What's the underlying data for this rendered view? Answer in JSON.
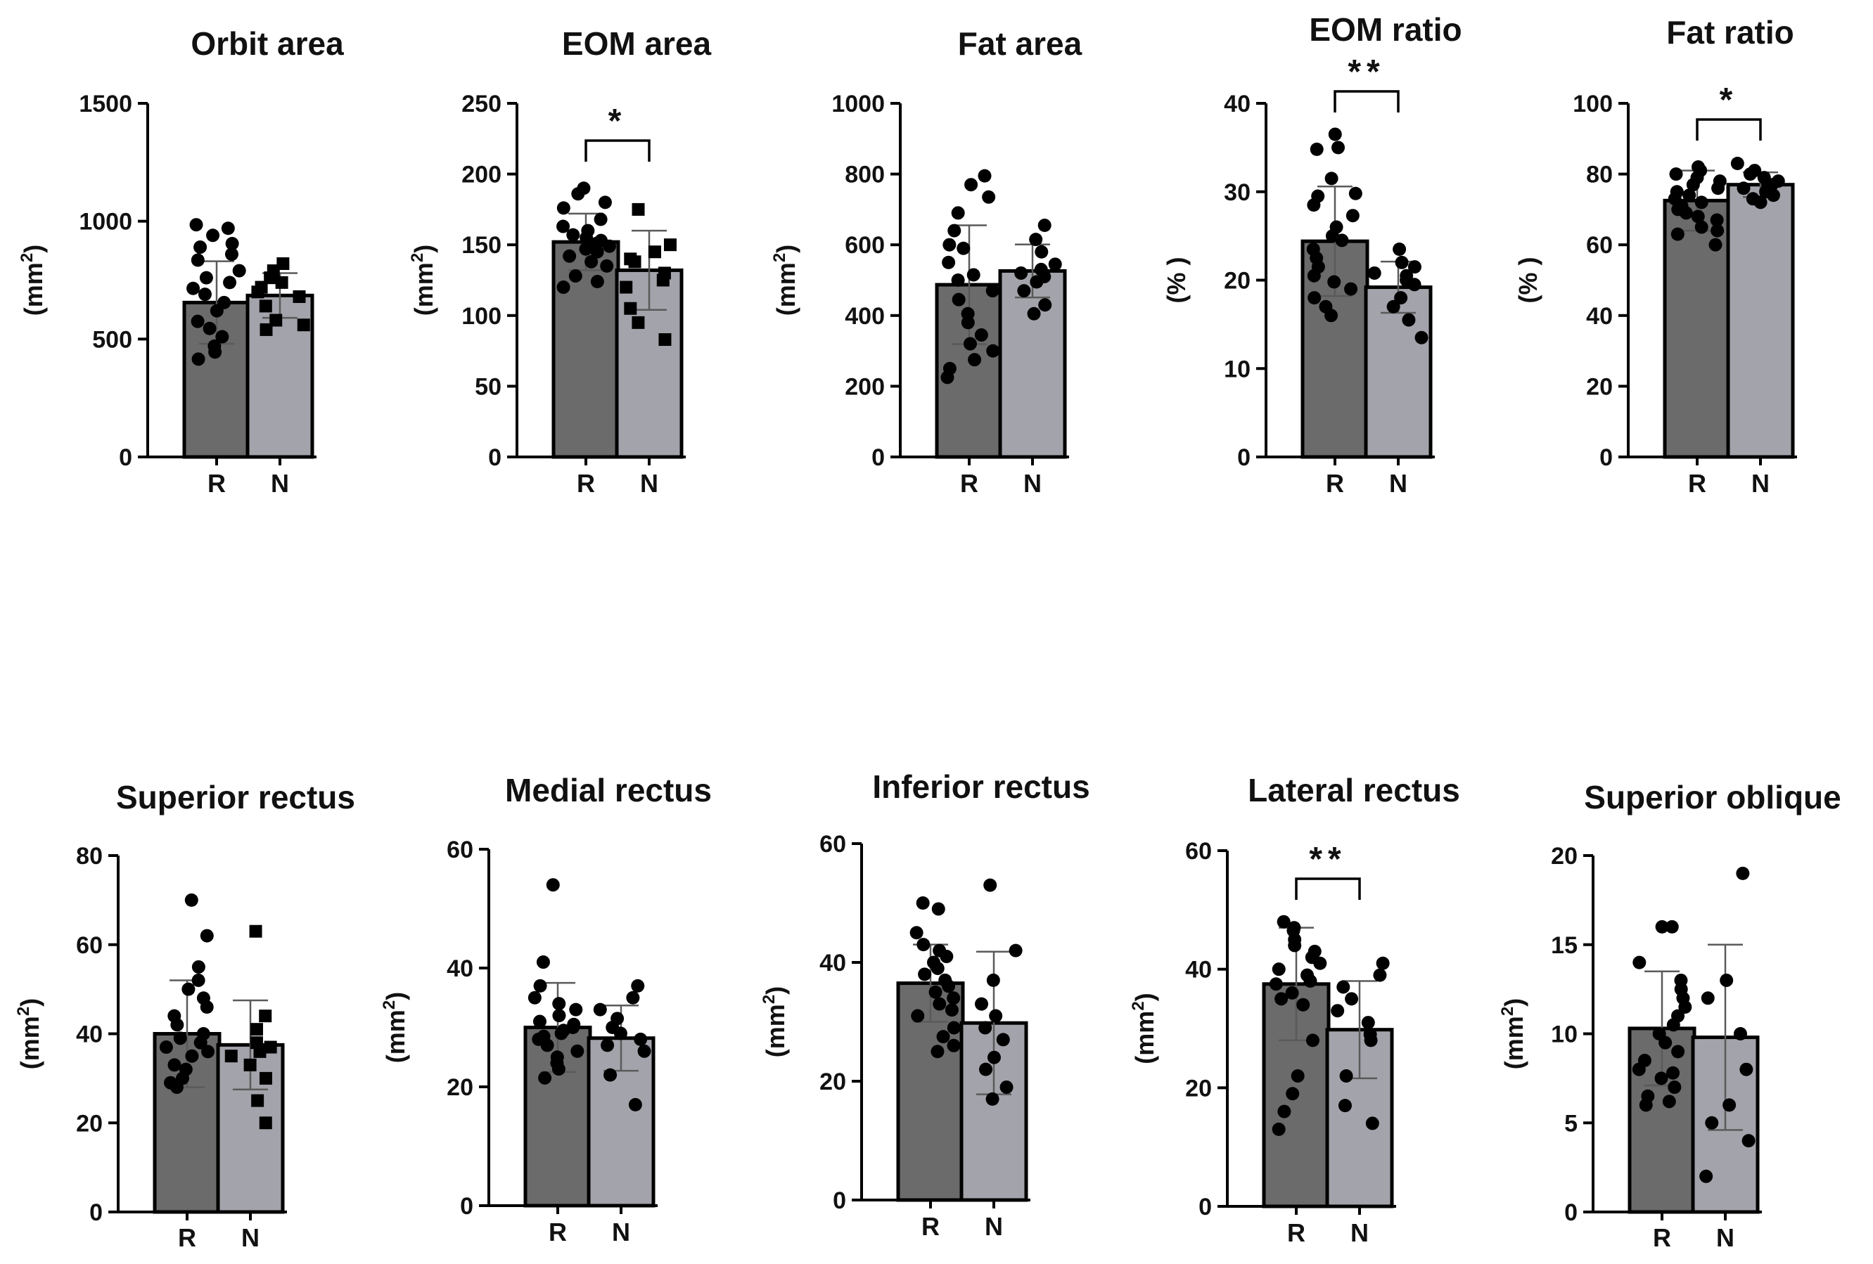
{
  "figure": {
    "colors": {
      "bar_R": "#6b6b6b",
      "bar_N": "#a3a3ab",
      "ink": "#000000",
      "errorbar": "#5a5a5a"
    },
    "marker_R": "circle",
    "marker_N_default": "circle"
  },
  "chart_data": [
    {
      "type": "bar",
      "title": "Orbit area",
      "ylabel": "(mm²)",
      "ylabel_base": "(mm",
      "ylabel_sup": "2",
      "ylabel_close": ")",
      "ylim": [
        0,
        1500
      ],
      "yticks": [
        0,
        500,
        1000,
        1500
      ],
      "categories": [
        "R",
        "N"
      ],
      "means": [
        655,
        685
      ],
      "sd": [
        175,
        95
      ],
      "markers": [
        "circle",
        "square"
      ],
      "points": [
        [
          970,
          985,
          940,
          905,
          890,
          860,
          835,
          790,
          760,
          740,
          715,
          690,
          655,
          620,
          575,
          545,
          510,
          470,
          445,
          415
        ],
        [
          820,
          790,
          760,
          740,
          720,
          700,
          680,
          640,
          580,
          560,
          540
        ]
      ],
      "significance": null
    },
    {
      "type": "bar",
      "title": "EOM area",
      "ylabel": "(mm²)",
      "ylabel_base": "(mm",
      "ylabel_sup": "2",
      "ylabel_close": ")",
      "ylim": [
        0,
        250
      ],
      "yticks": [
        0,
        50,
        100,
        150,
        200,
        250
      ],
      "categories": [
        "R",
        "N"
      ],
      "means": [
        152,
        132
      ],
      "sd": [
        20,
        28
      ],
      "markers": [
        "circle",
        "square"
      ],
      "points": [
        [
          190,
          186,
          180,
          176,
          168,
          163,
          160,
          157,
          155,
          153,
          151,
          149,
          147,
          145,
          142,
          138,
          135,
          128,
          124,
          120
        ],
        [
          175,
          150,
          145,
          140,
          138,
          130,
          125,
          120,
          105,
          95,
          83
        ]
      ],
      "significance": {
        "label": "*"
      }
    },
    {
      "type": "bar",
      "title": "Fat area",
      "ylabel": "(mm²)",
      "ylabel_base": "(mm",
      "ylabel_sup": "2",
      "ylabel_close": ")",
      "ylim": [
        0,
        1000
      ],
      "yticks": [
        0,
        200,
        400,
        600,
        800,
        1000
      ],
      "categories": [
        "R",
        "N"
      ],
      "means": [
        487,
        526
      ],
      "sd": [
        168,
        75
      ],
      "markers": [
        "circle",
        "circle"
      ],
      "points": [
        [
          795,
          770,
          735,
          690,
          640,
          600,
          590,
          550,
          515,
          500,
          470,
          445,
          405,
          380,
          345,
          320,
          300,
          275,
          250,
          225
        ],
        [
          655,
          615,
          580,
          545,
          530,
          520,
          510,
          495,
          470,
          430,
          405
        ]
      ],
      "significance": null
    },
    {
      "type": "bar",
      "title": "EOM ratio",
      "ylabel": "(% )",
      "ylabel_base": "(% )",
      "ylabel_sup": "",
      "ylabel_close": "",
      "ylim": [
        0,
        40
      ],
      "yticks": [
        0,
        10,
        20,
        30,
        40
      ],
      "categories": [
        "R",
        "N"
      ],
      "means": [
        24.4,
        19.2
      ],
      "sd": [
        6.2,
        2.9
      ],
      "markers": [
        "circle",
        "circle"
      ],
      "points": [
        [
          36.5,
          35.0,
          34.8,
          31.5,
          29.8,
          29.5,
          28.5,
          27.3,
          26.0,
          25.0,
          24.5,
          23.5,
          22.5,
          21.5,
          20.5,
          19.8,
          19.0,
          18.0,
          17.0,
          16.0
        ],
        [
          23.5,
          22.0,
          21.5,
          20.8,
          20.5,
          20.0,
          19.5,
          18.0,
          17.0,
          15.5,
          13.5
        ]
      ],
      "significance": {
        "label": "**"
      }
    },
    {
      "type": "bar",
      "title": "Fat ratio",
      "ylabel": "(% )",
      "ylabel_base": "(% )",
      "ylabel_sup": "",
      "ylabel_close": "",
      "ylim": [
        0,
        100
      ],
      "yticks": [
        0,
        20,
        40,
        60,
        80,
        100
      ],
      "categories": [
        "R",
        "N"
      ],
      "means": [
        72.5,
        77
      ],
      "sd": [
        8.5,
        3.5
      ],
      "markers": [
        "circle",
        "circle"
      ],
      "points": [
        [
          82,
          81,
          80,
          79,
          78,
          77,
          76,
          75,
          74,
          73,
          72,
          71,
          70,
          69,
          68,
          67,
          65,
          64,
          63,
          60
        ],
        [
          83,
          81,
          80,
          79,
          78,
          77,
          76,
          75,
          74,
          73,
          72
        ]
      ],
      "significance": {
        "label": "*"
      }
    },
    {
      "type": "bar",
      "title": "Superior rectus",
      "ylabel": "(mm²)",
      "ylabel_base": "(mm",
      "ylabel_sup": "2",
      "ylabel_close": ")",
      "ylim": [
        0,
        80
      ],
      "yticks": [
        0,
        20,
        40,
        60,
        80
      ],
      "categories": [
        "R",
        "N"
      ],
      "means": [
        40,
        37.5
      ],
      "sd": [
        12,
        10
      ],
      "markers": [
        "circle",
        "square"
      ],
      "points": [
        [
          70,
          62,
          55,
          52,
          50,
          48,
          46,
          44,
          42,
          40,
          39,
          38,
          37,
          36,
          35,
          33,
          32,
          30,
          29,
          28
        ],
        [
          63,
          44,
          41,
          38,
          37,
          36,
          35,
          33,
          30,
          25,
          20
        ]
      ],
      "significance": null
    },
    {
      "type": "bar",
      "title": "Medial rectus",
      "ylabel": "(mm²)",
      "ylabel_base": "(mm",
      "ylabel_sup": "2",
      "ylabel_close": ")",
      "ylim": [
        0,
        60
      ],
      "yticks": [
        0,
        20,
        40,
        60
      ],
      "categories": [
        "R",
        "N"
      ],
      "means": [
        30,
        28.2
      ],
      "sd": [
        7.5,
        5.5
      ],
      "markers": [
        "circle",
        "circle"
      ],
      "points": [
        [
          54,
          41,
          37,
          35,
          34,
          33,
          32,
          31,
          30.5,
          30,
          29.5,
          29,
          28.5,
          28,
          27,
          26,
          25,
          24,
          23,
          21.5
        ],
        [
          37,
          35,
          33,
          31.5,
          30,
          29,
          28,
          27,
          26,
          22,
          17
        ]
      ],
      "significance": null
    },
    {
      "type": "bar",
      "title": "Inferior rectus",
      "ylabel": "(mm²)",
      "ylabel_base": "(mm",
      "ylabel_sup": "2",
      "ylabel_close": ")",
      "ylim": [
        0,
        60
      ],
      "yticks": [
        0,
        20,
        40,
        60
      ],
      "categories": [
        "R",
        "N"
      ],
      "means": [
        36.5,
        29.8
      ],
      "sd": [
        6.5,
        12
      ],
      "markers": [
        "circle",
        "circle"
      ],
      "points": [
        [
          50,
          49,
          45,
          43,
          42,
          41,
          40,
          39,
          38,
          37,
          36,
          35,
          34,
          33,
          32,
          31,
          29,
          27.5,
          26,
          25
        ],
        [
          53,
          42,
          37,
          33,
          31,
          29,
          27,
          24,
          22,
          19,
          17
        ]
      ],
      "significance": null
    },
    {
      "type": "bar",
      "title": "Lateral rectus",
      "ylabel": "(mm²)",
      "ylabel_base": "(mm",
      "ylabel_sup": "2",
      "ylabel_close": ")",
      "ylim": [
        0,
        60
      ],
      "yticks": [
        0,
        20,
        40,
        60
      ],
      "categories": [
        "R",
        "N"
      ],
      "means": [
        37.5,
        29.8
      ],
      "sd": [
        9.5,
        8.2
      ],
      "markers": [
        "circle",
        "circle"
      ],
      "points": [
        [
          48,
          47,
          46.5,
          45,
          44,
          43,
          42,
          41,
          40,
          39,
          38,
          37.5,
          36,
          35,
          34,
          28,
          22,
          19,
          16,
          13
        ],
        [
          41,
          39,
          37,
          35,
          33,
          31,
          29,
          28,
          22,
          17,
          14
        ]
      ],
      "significance": {
        "label": "**"
      }
    },
    {
      "type": "bar",
      "title": "Superior oblique",
      "ylabel": "(mm²)",
      "ylabel_base": "(mm",
      "ylabel_sup": "2",
      "ylabel_close": ")",
      "ylim": [
        0,
        20
      ],
      "yticks": [
        0,
        5,
        10,
        15,
        20
      ],
      "categories": [
        "R",
        "N"
      ],
      "means": [
        10.3,
        9.8
      ],
      "sd": [
        3.2,
        5.2
      ],
      "markers": [
        "circle",
        "circle"
      ],
      "points": [
        [
          16,
          16,
          14,
          13,
          12.5,
          12,
          11.5,
          11,
          10.5,
          10,
          9.5,
          9,
          8.5,
          8,
          7.8,
          7.5,
          7,
          6.5,
          6.2,
          6
        ],
        [
          19,
          13,
          12,
          10,
          8,
          6,
          5,
          4,
          2
        ]
      ],
      "significance": null
    }
  ]
}
